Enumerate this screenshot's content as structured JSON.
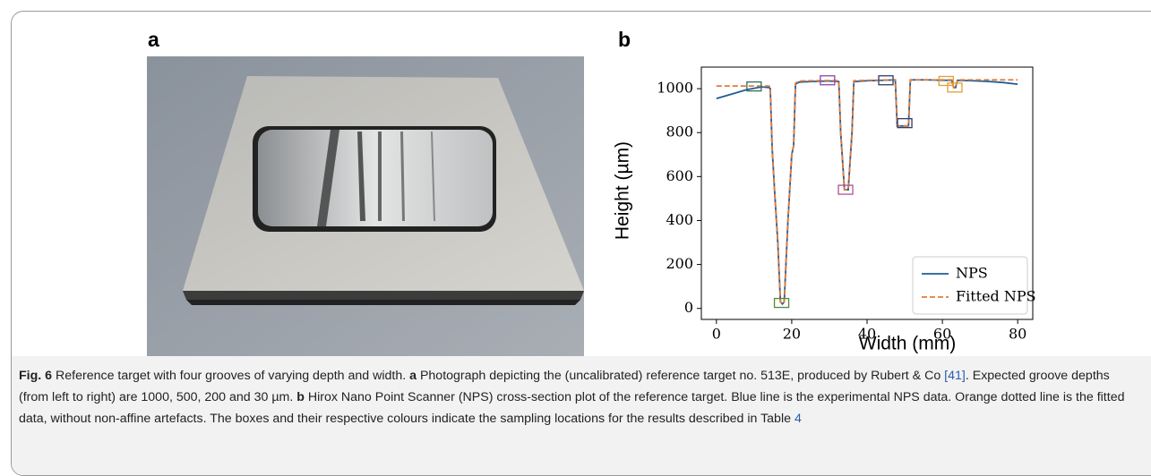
{
  "panel_labels": [
    "a",
    "b"
  ],
  "chart_data": {
    "type": "line",
    "x_label": "Width (mm)",
    "y_label": "Height (µm)",
    "xlim": [
      -4,
      84
    ],
    "xticks": [
      0,
      20,
      40,
      60,
      80
    ],
    "ylim": [
      -50,
      1098
    ],
    "yticks": [
      0,
      200,
      400,
      600,
      800,
      1000
    ],
    "legend": "lower right",
    "grid": false,
    "series": [
      {
        "name": "NPS",
        "color": "#1f5c99",
        "linestyle": "solid",
        "x": [
          0,
          4,
          8,
          12,
          14,
          14.3,
          14.8,
          15.5,
          16.3,
          17,
          17.5,
          18,
          19,
          20,
          20.5,
          21,
          22,
          26,
          30,
          32.5,
          33,
          34,
          35,
          36,
          36.5,
          40,
          44,
          47.5,
          48,
          51,
          51.5,
          56,
          60,
          62.5,
          63,
          63.5,
          64,
          68,
          72,
          76,
          80
        ],
        "values": [
          955,
          975,
          995,
          1008,
          1005,
          1000,
          730,
          520,
          300,
          30,
          20,
          30,
          400,
          700,
          740,
          1020,
          1030,
          1033,
          1035,
          1032,
          800,
          540,
          540,
          800,
          1032,
          1036,
          1038,
          1040,
          830,
          830,
          1040,
          1040,
          1038,
          1038,
          1005,
          1005,
          1038,
          1036,
          1033,
          1028,
          1020
        ]
      },
      {
        "name": "Fitted NPS",
        "color": "#e07b39",
        "linestyle": "dashed",
        "x": [
          0,
          4,
          8,
          12,
          14,
          14.3,
          14.8,
          15.5,
          16.3,
          17,
          17.5,
          18,
          19,
          20,
          20.5,
          21,
          22,
          26,
          30,
          32.5,
          33,
          34,
          35,
          36,
          36.5,
          40,
          44,
          47.5,
          48,
          51,
          51.5,
          56,
          60,
          62.5,
          63,
          63.5,
          64,
          68,
          72,
          76,
          80
        ],
        "values": [
          1012,
          1012,
          1012,
          1012,
          1012,
          1005,
          730,
          520,
          300,
          30,
          20,
          30,
          400,
          700,
          740,
          1025,
          1035,
          1036,
          1037,
          1036,
          800,
          540,
          540,
          800,
          1036,
          1038,
          1039,
          1040,
          830,
          830,
          1040,
          1040,
          1040,
          1040,
          1005,
          1005,
          1040,
          1040,
          1040,
          1040,
          1040
        ]
      }
    ],
    "boxes": [
      {
        "x": 10,
        "y": 1010,
        "color": "#2f6e5c"
      },
      {
        "x": 17.3,
        "y": 25,
        "color": "#4f8a3a"
      },
      {
        "x": 29.5,
        "y": 1038,
        "color": "#8e44ad"
      },
      {
        "x": 34.3,
        "y": 540,
        "color": "#b0509a"
      },
      {
        "x": 45,
        "y": 1038,
        "color": "#2c3e6b"
      },
      {
        "x": 50,
        "y": 843,
        "color": "#2c3e6b"
      },
      {
        "x": 61,
        "y": 1035,
        "color": "#e0a030"
      },
      {
        "x": 63.3,
        "y": 1005,
        "color": "#e0a030"
      }
    ]
  },
  "caption": {
    "label": "Fig. 6",
    "title": " Reference target with four grooves of varying depth and width. ",
    "a_label": "a",
    "a_text": " Photograph depicting the (uncalibrated) reference target no. 513E, produced by Rubert & Co ",
    "a_ref": "[41]",
    "a_text2": ". Expected groove depths (from left to right) are 1000, 500, 200 and 30 µm. ",
    "b_label": "b",
    "b_text": " Hirox Nano Point Scanner (NPS) cross-section plot of the reference target. Blue line is the experimental NPS data. Orange dotted line is the fitted data, without non-affine artefacts. The boxes and their respective colours indicate the sampling locations for the results described in Table ",
    "b_ref": "4"
  }
}
